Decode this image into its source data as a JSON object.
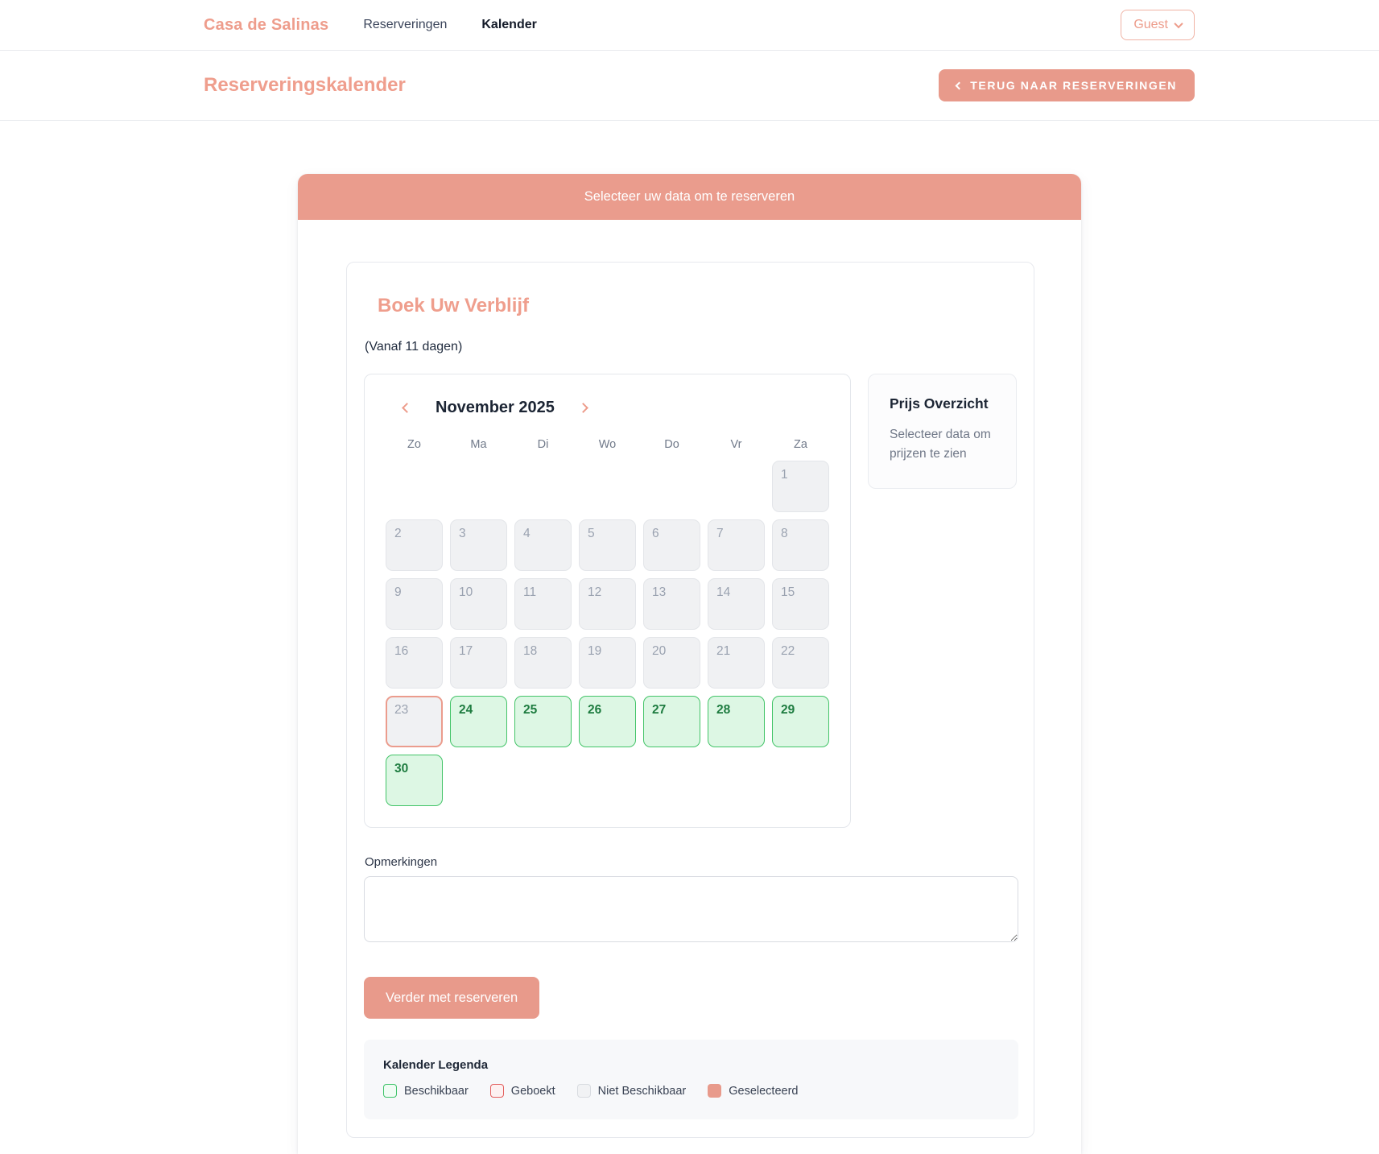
{
  "colors": {
    "accent_salmon": "#e89a8b",
    "banner_salmon": "#ea9c8d",
    "available_green_bg": "#ddf7e4",
    "available_green_border": "#43c468",
    "available_green_text": "#1e7c40",
    "unavailable_gray_bg": "#f0f1f3",
    "booked_red_border": "#e35f5e",
    "dark_text": "#1c2534"
  },
  "icons": {
    "guest_dropdown": "chevron-down-icon",
    "back_button": "chevron-left-icon",
    "calendar_prev": "chevron-left-icon",
    "calendar_next": "chevron-right-icon"
  },
  "navbar": {
    "brand": "Casa de Salinas",
    "links": [
      {
        "label": "Reserveringen",
        "active": false
      },
      {
        "label": "Kalender",
        "active": true
      }
    ],
    "user_menu": {
      "label": "Guest"
    }
  },
  "page_header": {
    "title": "Reserveringskalender",
    "back_button_label": "TERUG NAAR RESERVERINGEN"
  },
  "booking_card": {
    "banner": "Selecteer uw data om te reserveren",
    "title": "Boek Uw Verblijf",
    "subtitle": "(Vanaf 11 dagen)",
    "calendar": {
      "month_label": "November 2025",
      "weekdays": [
        "Zo",
        "Ma",
        "Di",
        "Wo",
        "Do",
        "Vr",
        "Za"
      ],
      "weeks": [
        [
          null,
          null,
          null,
          null,
          null,
          null,
          {
            "day": 1,
            "state": "unavailable"
          }
        ],
        [
          {
            "day": 2,
            "state": "unavailable"
          },
          {
            "day": 3,
            "state": "unavailable"
          },
          {
            "day": 4,
            "state": "unavailable"
          },
          {
            "day": 5,
            "state": "unavailable"
          },
          {
            "day": 6,
            "state": "unavailable"
          },
          {
            "day": 7,
            "state": "unavailable"
          },
          {
            "day": 8,
            "state": "unavailable"
          }
        ],
        [
          {
            "day": 9,
            "state": "unavailable"
          },
          {
            "day": 10,
            "state": "unavailable"
          },
          {
            "day": 11,
            "state": "unavailable"
          },
          {
            "day": 12,
            "state": "unavailable"
          },
          {
            "day": 13,
            "state": "unavailable"
          },
          {
            "day": 14,
            "state": "unavailable"
          },
          {
            "day": 15,
            "state": "unavailable"
          }
        ],
        [
          {
            "day": 16,
            "state": "unavailable"
          },
          {
            "day": 17,
            "state": "unavailable"
          },
          {
            "day": 18,
            "state": "unavailable"
          },
          {
            "day": 19,
            "state": "unavailable"
          },
          {
            "day": 20,
            "state": "unavailable"
          },
          {
            "day": 21,
            "state": "unavailable"
          },
          {
            "day": 22,
            "state": "unavailable"
          }
        ],
        [
          {
            "day": 23,
            "state": "today"
          },
          {
            "day": 24,
            "state": "available"
          },
          {
            "day": 25,
            "state": "available"
          },
          {
            "day": 26,
            "state": "available"
          },
          {
            "day": 27,
            "state": "available"
          },
          {
            "day": 28,
            "state": "available"
          },
          {
            "day": 29,
            "state": "available"
          }
        ],
        [
          {
            "day": 30,
            "state": "available"
          },
          null,
          null,
          null,
          null,
          null,
          null
        ]
      ]
    },
    "price_panel": {
      "title": "Prijs Overzicht",
      "empty_text": "Selecteer data om prijzen te zien"
    },
    "notes": {
      "label": "Opmerkingen",
      "value": ""
    },
    "submit_button_label": "Verder met reserveren",
    "legend": {
      "title": "Kalender Legenda",
      "items": [
        {
          "label": "Beschikbaar",
          "type": "available"
        },
        {
          "label": "Geboekt",
          "type": "booked"
        },
        {
          "label": "Niet Beschikbaar",
          "type": "unavailable"
        },
        {
          "label": "Geselecteerd",
          "type": "selected"
        }
      ]
    }
  }
}
